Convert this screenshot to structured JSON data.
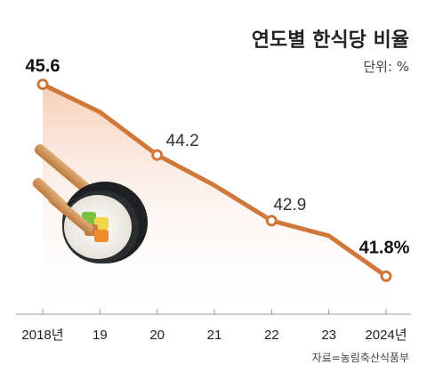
{
  "chart_data": {
    "type": "line",
    "title": "연도별 한식당 비율",
    "unit_label": "단위: %",
    "source": "자료=농림축산식품부",
    "categories": [
      "2018년",
      "19",
      "20",
      "21",
      "22",
      "23",
      "2024년"
    ],
    "x": [
      2018,
      2019,
      2020,
      2021,
      2022,
      2023,
      2024
    ],
    "values": [
      45.6,
      45.05,
      44.2,
      43.6,
      42.9,
      42.6,
      41.8
    ],
    "data_labels": [
      {
        "index": 0,
        "text": "45.6",
        "bold": true
      },
      {
        "index": 2,
        "text": "44.2",
        "bold": false
      },
      {
        "index": 4,
        "text": "42.9",
        "bold": false
      },
      {
        "index": 6,
        "text": "41.8%",
        "bold": true
      }
    ],
    "ylim": [
      41.4,
      46.0
    ],
    "grid": false,
    "line_color": "#d0783a",
    "area_color": "#f8dccb"
  }
}
